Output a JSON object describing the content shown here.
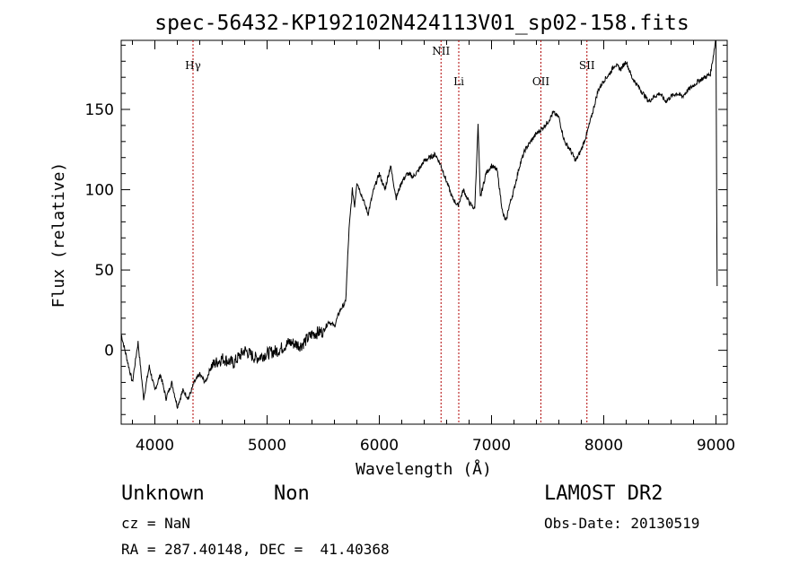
{
  "chart_data": {
    "type": "line",
    "title": "spec-56432-KP192102N424113V01_sp02-158.fits",
    "xlabel": "Wavelength (Å)",
    "ylabel": "Flux (relative)",
    "xlim": [
      3700,
      9100
    ],
    "ylim": [
      -46,
      193
    ],
    "x_ticks": [
      4000,
      5000,
      6000,
      7000,
      8000,
      9000
    ],
    "y_ticks": [
      0,
      50,
      100,
      150
    ],
    "grid": false,
    "series": [
      {
        "x": [
          3700,
          3750,
          3800,
          3850,
          3900,
          3950,
          4000,
          4050,
          4100,
          4150,
          4200,
          4250,
          4300,
          4350,
          4400,
          4450,
          4500,
          4600,
          4700,
          4800,
          4900,
          5000,
          5100,
          5200,
          5300,
          5400,
          5500,
          5550,
          5600,
          5650,
          5700,
          5730,
          5760,
          5780,
          5800,
          5850,
          5900,
          5950,
          6000,
          6050,
          6100,
          6150,
          6200,
          6250,
          6300,
          6350,
          6400,
          6450,
          6500,
          6550,
          6600,
          6650,
          6700,
          6750,
          6800,
          6850,
          6880,
          6900,
          6950,
          7000,
          7050,
          7100,
          7130,
          7150,
          7200,
          7250,
          7300,
          7350,
          7400,
          7450,
          7500,
          7550,
          7600,
          7650,
          7700,
          7750,
          7800,
          7850,
          7900,
          7950,
          8000,
          8050,
          8100,
          8150,
          8200,
          8250,
          8300,
          8350,
          8400,
          8450,
          8500,
          8550,
          8600,
          8650,
          8700,
          8750,
          8800,
          8850,
          8900,
          8950,
          8980,
          9000,
          9010
        ],
        "y": [
          10,
          -5,
          -20,
          5,
          -30,
          -10,
          -25,
          -15,
          -30,
          -20,
          -35,
          -25,
          -30,
          -20,
          -15,
          -20,
          -10,
          -5,
          -8,
          0,
          -5,
          -2,
          0,
          5,
          3,
          10,
          12,
          18,
          15,
          25,
          30,
          75,
          100,
          90,
          105,
          95,
          85,
          100,
          110,
          100,
          115,
          95,
          105,
          110,
          108,
          112,
          118,
          120,
          122,
          115,
          105,
          95,
          90,
          100,
          92,
          88,
          140,
          95,
          110,
          115,
          112,
          85,
          80,
          88,
          100,
          115,
          125,
          130,
          135,
          138,
          142,
          148,
          145,
          130,
          125,
          118,
          125,
          135,
          148,
          162,
          168,
          172,
          178,
          175,
          180,
          170,
          165,
          160,
          155,
          158,
          160,
          155,
          158,
          160,
          158,
          162,
          165,
          168,
          170,
          172,
          185,
          195,
          40
        ]
      }
    ],
    "annotations": [
      {
        "label": "Hγ",
        "x": 4340
      },
      {
        "label": "NII",
        "x": 6550
      },
      {
        "label": "Li",
        "x": 6708
      },
      {
        "label": "OII",
        "x": 7440
      },
      {
        "label": "SII",
        "x": 7850
      }
    ],
    "colors": {
      "line": "#000000",
      "marker": "#b00000"
    }
  },
  "info": {
    "class_label": "Unknown",
    "subclass_label": "Non",
    "survey_label": "LAMOST DR2",
    "cz_label": "cz = NaN",
    "obs_date_label": "Obs-Date: 20130519",
    "coords_label": "RA = 287.40148, DEC =  41.40368"
  }
}
